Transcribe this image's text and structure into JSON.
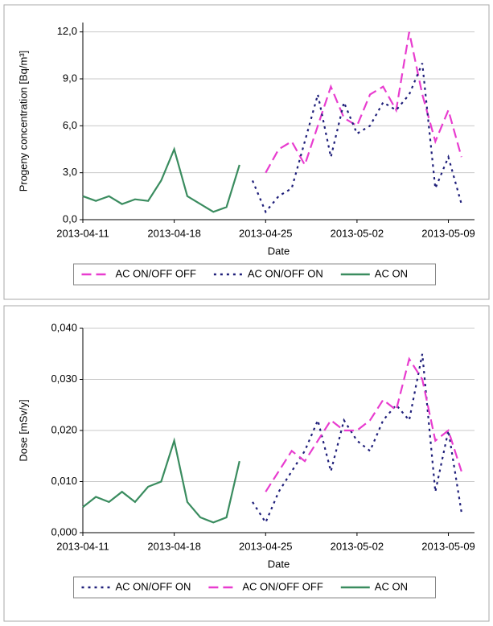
{
  "chart_data": [
    {
      "type": "line",
      "x_label": "Date",
      "y_label": "Progeny concentration [Bq/m³]",
      "x": [
        "2013-04-11",
        "2013-04-12",
        "2013-04-13",
        "2013-04-14",
        "2013-04-15",
        "2013-04-16",
        "2013-04-17",
        "2013-04-18",
        "2013-04-19",
        "2013-04-20",
        "2013-04-21",
        "2013-04-22",
        "2013-04-23",
        "2013-04-24",
        "2013-04-25",
        "2013-04-26",
        "2013-04-27",
        "2013-04-28",
        "2013-04-29",
        "2013-04-30",
        "2013-05-01",
        "2013-05-02",
        "2013-05-03",
        "2013-05-04",
        "2013-05-05",
        "2013-05-06",
        "2013-05-07",
        "2013-05-08",
        "2013-05-09",
        "2013-05-10"
      ],
      "xlim": [
        "2013-04-11",
        "2013-05-11"
      ],
      "xticks": [
        "2013-04-11",
        "2013-04-18",
        "2013-04-25",
        "2013-05-02",
        "2013-05-09"
      ],
      "ylim": [
        0,
        12.6
      ],
      "yticks": [
        {
          "value": 0,
          "label": "0,0"
        },
        {
          "value": 3,
          "label": "3,0"
        },
        {
          "value": 6,
          "label": "6,0"
        },
        {
          "value": 9,
          "label": "9,0"
        },
        {
          "value": 12,
          "label": "12,0"
        }
      ],
      "grid": true,
      "series": [
        {
          "name": "AC ON/OFF OFF",
          "color": "#e83ccf",
          "dash": "dashed",
          "values": [
            null,
            null,
            null,
            null,
            null,
            null,
            null,
            null,
            null,
            null,
            null,
            null,
            null,
            null,
            3.0,
            4.5,
            5.0,
            3.5,
            6.0,
            8.5,
            6.5,
            6.0,
            8.0,
            8.5,
            7.0,
            12.0,
            8.0,
            5.0,
            7.0,
            4.0
          ]
        },
        {
          "name": "AC ON/OFF ON",
          "color": "#1f1f7a",
          "dash": "dotted",
          "values": [
            null,
            null,
            null,
            null,
            null,
            null,
            null,
            null,
            null,
            null,
            null,
            null,
            null,
            2.5,
            0.5,
            1.5,
            2.0,
            5.0,
            8.0,
            4.0,
            7.5,
            5.5,
            6.0,
            7.5,
            7.0,
            8.0,
            10.0,
            2.0,
            4.0,
            1.0
          ]
        },
        {
          "name": "AC ON",
          "color": "#3a8c5f",
          "dash": "solid",
          "values": [
            1.5,
            1.2,
            1.5,
            1.0,
            1.3,
            1.2,
            2.5,
            4.5,
            1.5,
            1.0,
            0.5,
            0.8,
            3.5,
            null,
            null,
            null,
            null,
            null,
            null,
            null,
            null,
            null,
            null,
            null,
            null,
            null,
            null,
            null,
            null,
            null
          ]
        }
      ]
    },
    {
      "type": "line",
      "x_label": "Date",
      "y_label": "Dose [mSv/y]",
      "x": [
        "2013-04-11",
        "2013-04-12",
        "2013-04-13",
        "2013-04-14",
        "2013-04-15",
        "2013-04-16",
        "2013-04-17",
        "2013-04-18",
        "2013-04-19",
        "2013-04-20",
        "2013-04-21",
        "2013-04-22",
        "2013-04-23",
        "2013-04-24",
        "2013-04-25",
        "2013-04-26",
        "2013-04-27",
        "2013-04-28",
        "2013-04-29",
        "2013-04-30",
        "2013-05-01",
        "2013-05-02",
        "2013-05-03",
        "2013-05-04",
        "2013-05-05",
        "2013-05-06",
        "2013-05-07",
        "2013-05-08",
        "2013-05-09",
        "2013-05-10"
      ],
      "xlim": [
        "2013-04-11",
        "2013-05-11"
      ],
      "xticks": [
        "2013-04-11",
        "2013-04-18",
        "2013-04-25",
        "2013-05-02",
        "2013-05-09"
      ],
      "ylim": [
        0,
        0.04
      ],
      "yticks": [
        {
          "value": 0,
          "label": "0,000"
        },
        {
          "value": 0.01,
          "label": "0,010"
        },
        {
          "value": 0.02,
          "label": "0,020"
        },
        {
          "value": 0.03,
          "label": "0,030"
        },
        {
          "value": 0.04,
          "label": "0,040"
        }
      ],
      "grid": true,
      "series": [
        {
          "name": "AC ON/OFF ON",
          "color": "#1f1f7a",
          "dash": "dotted",
          "values": [
            null,
            null,
            null,
            null,
            null,
            null,
            null,
            null,
            null,
            null,
            null,
            null,
            null,
            0.006,
            0.002,
            0.008,
            0.012,
            0.016,
            0.022,
            0.012,
            0.022,
            0.018,
            0.016,
            0.022,
            0.025,
            0.022,
            0.035,
            0.008,
            0.02,
            0.004
          ]
        },
        {
          "name": "AC ON/OFF OFF",
          "color": "#e83ccf",
          "dash": "dashed",
          "values": [
            null,
            null,
            null,
            null,
            null,
            null,
            null,
            null,
            null,
            null,
            null,
            null,
            null,
            null,
            0.008,
            0.012,
            0.016,
            0.014,
            0.018,
            0.022,
            0.02,
            0.02,
            0.022,
            0.026,
            0.024,
            0.034,
            0.03,
            0.018,
            0.02,
            0.012
          ]
        },
        {
          "name": "AC ON",
          "color": "#3a8c5f",
          "dash": "solid",
          "values": [
            0.005,
            0.007,
            0.006,
            0.008,
            0.006,
            0.009,
            0.01,
            0.018,
            0.006,
            0.003,
            0.002,
            0.003,
            0.014,
            null,
            null,
            null,
            null,
            null,
            null,
            null,
            null,
            null,
            null,
            null,
            null,
            null,
            null,
            null,
            null,
            null
          ]
        }
      ]
    }
  ]
}
